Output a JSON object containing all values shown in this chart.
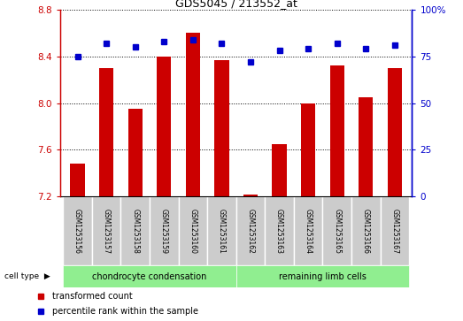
{
  "title": "GDS5045 / 213552_at",
  "samples": [
    "GSM1253156",
    "GSM1253157",
    "GSM1253158",
    "GSM1253159",
    "GSM1253160",
    "GSM1253161",
    "GSM1253162",
    "GSM1253163",
    "GSM1253164",
    "GSM1253165",
    "GSM1253166",
    "GSM1253167"
  ],
  "transformed_count": [
    7.48,
    8.3,
    7.95,
    8.4,
    8.6,
    8.37,
    7.22,
    7.65,
    8.0,
    8.32,
    8.05,
    8.3
  ],
  "percentile_rank": [
    75,
    82,
    80,
    83,
    84,
    82,
    72,
    78,
    79,
    82,
    79,
    81
  ],
  "ylim_left": [
    7.2,
    8.8
  ],
  "ylim_right": [
    0,
    100
  ],
  "yticks_left": [
    7.2,
    7.6,
    8.0,
    8.4,
    8.8
  ],
  "yticks_right": [
    0,
    25,
    50,
    75,
    100
  ],
  "bar_color": "#CC0000",
  "dot_color": "#0000CC",
  "bar_width": 0.5,
  "sample_box_color": "#CCCCCC",
  "group_color": "#90EE90",
  "plot_bg": "#FFFFFF",
  "legend_items": [
    {
      "label": "transformed count",
      "color": "#CC0000"
    },
    {
      "label": "percentile rank within the sample",
      "color": "#0000CC"
    }
  ]
}
